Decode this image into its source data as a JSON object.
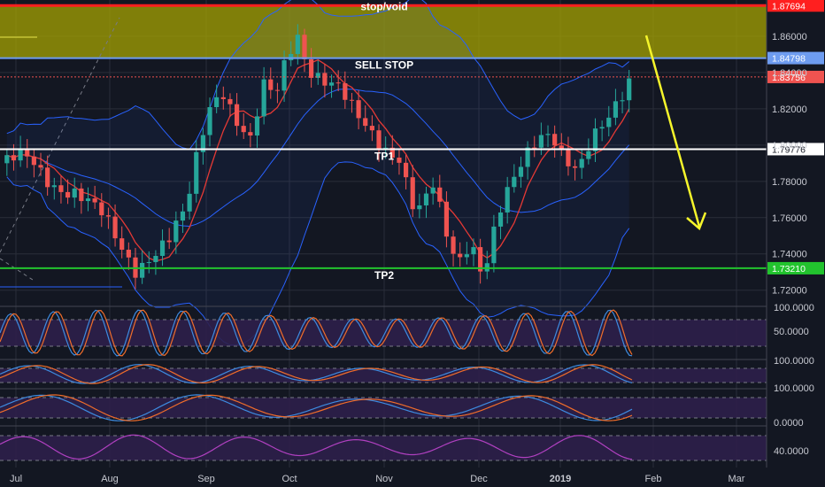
{
  "colors": {
    "background": "#131722",
    "grid": "#2a2e39",
    "up": "#26a69a",
    "down": "#ef5350",
    "bollinger": "#2962ff",
    "fast_ma": "#e53935",
    "stop_zone": "#aaa800",
    "stop_line": "#ff1f1f",
    "sell_stop_line": "#6e9cf0",
    "tp1_line": "#ffffff",
    "tp2_line": "#22c32e",
    "arrow": "#f5f52b",
    "osc_blue": "#3d8be0",
    "osc_orange": "#f06d2a",
    "osc_purple": "#b040c0",
    "osc_band": "#2e1f4a"
  },
  "chart_data": {
    "type": "candlestick",
    "symbol_scale": "linear",
    "x_axis_labels": [
      "Jul",
      "Aug",
      "Sep",
      "Oct",
      "Nov",
      "Dec",
      "2019",
      "Feb",
      "Mar"
    ],
    "y_axis_ticks": [
      "1.86000",
      "1.84000",
      "1.82000",
      "1.80000",
      "1.78000",
      "1.76000",
      "1.74000",
      "1.72000"
    ],
    "ylim": [
      1.714,
      1.88
    ],
    "price_levels": [
      {
        "label": "1.87694",
        "value": 1.87694,
        "annotation": "stop/void",
        "color": "#ff1f1f"
      },
      {
        "label": "1.84798",
        "value": 1.84798,
        "annotation": "SELL STOP",
        "color": "#6e9cf0"
      },
      {
        "label": "1.83756",
        "value": 1.83756,
        "annotation": "",
        "color": "#ef5350"
      },
      {
        "label": "1.79776",
        "value": 1.79776,
        "annotation": "TP1",
        "color": "#ffffff"
      },
      {
        "label": "1.73210",
        "value": 1.7321,
        "annotation": "TP2",
        "color": "#22c32e"
      }
    ],
    "close_path": [
      [
        0,
        1.79
      ],
      [
        15,
        1.792
      ],
      [
        30,
        1.78
      ],
      [
        45,
        1.775
      ],
      [
        60,
        1.76
      ],
      [
        72,
        1.742
      ],
      [
        80,
        1.733
      ],
      [
        88,
        1.74
      ],
      [
        100,
        1.748
      ],
      [
        110,
        1.762
      ],
      [
        118,
        1.8
      ],
      [
        125,
        1.825
      ],
      [
        132,
        1.832
      ],
      [
        140,
        1.815
      ],
      [
        148,
        1.802
      ],
      [
        156,
        1.83
      ],
      [
        163,
        1.825
      ],
      [
        170,
        1.85
      ],
      [
        176,
        1.862
      ],
      [
        182,
        1.845
      ],
      [
        190,
        1.838
      ],
      [
        200,
        1.83
      ],
      [
        210,
        1.815
      ],
      [
        218,
        1.808
      ],
      [
        228,
        1.8
      ],
      [
        236,
        1.795
      ],
      [
        246,
        1.76
      ],
      [
        256,
        1.775
      ],
      [
        264,
        1.75
      ],
      [
        270,
        1.735
      ],
      [
        278,
        1.75
      ],
      [
        286,
        1.73
      ],
      [
        294,
        1.76
      ],
      [
        302,
        1.775
      ],
      [
        310,
        1.79
      ],
      [
        318,
        1.805
      ],
      [
        326,
        1.81
      ],
      [
        334,
        1.795
      ],
      [
        342,
        1.785
      ],
      [
        350,
        1.8
      ],
      [
        358,
        1.81
      ],
      [
        366,
        1.825
      ],
      [
        372,
        1.838
      ]
    ],
    "oscillator_panels": [
      {
        "name": "stochastic",
        "ticks": [
          "100.0000",
          "50.0000"
        ],
        "ylim": [
          0,
          100
        ]
      },
      {
        "name": "macd",
        "ticks": [
          "100.0000"
        ],
        "ylim": [
          0,
          100
        ]
      },
      {
        "name": "stochastic_slow",
        "ticks": [
          "0.0000"
        ],
        "ylim": [
          0,
          100
        ]
      },
      {
        "name": "rsi",
        "ticks": [
          "40.0000"
        ],
        "ylim": [
          0,
          100
        ]
      }
    ]
  }
}
